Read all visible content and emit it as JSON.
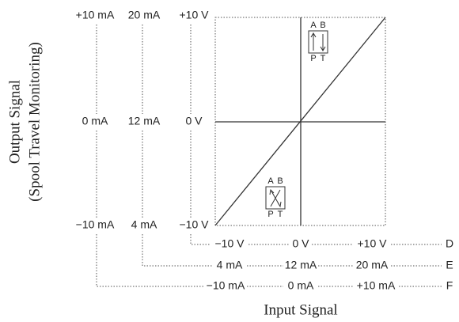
{
  "y_axis_title": [
    "Output Signal",
    "(Spool Travel Monitoring)"
  ],
  "x_axis_title": "Input Signal",
  "output_scales": [
    [
      "+10 mA",
      "0 mA",
      "−10 mA"
    ],
    [
      "20 mA",
      "12 mA",
      "4 mA"
    ],
    [
      "+10 V",
      "0 V",
      "−10 V"
    ]
  ],
  "input_scales": [
    {
      "name": "D",
      "labels": [
        "−10 V",
        "0 V",
        "+10 V"
      ]
    },
    {
      "name": "E",
      "labels": [
        "4 mA",
        "12 mA",
        "20 mA"
      ]
    },
    {
      "name": "F",
      "labels": [
        "−10 mA",
        "0 mA",
        "+10 mA"
      ]
    }
  ],
  "symbols": [
    {
      "top": [
        "A",
        "B"
      ],
      "bottom": [
        "P",
        "T"
      ]
    },
    {
      "top": [
        "A",
        "B"
      ],
      "bottom": [
        "P",
        "T"
      ]
    }
  ]
}
